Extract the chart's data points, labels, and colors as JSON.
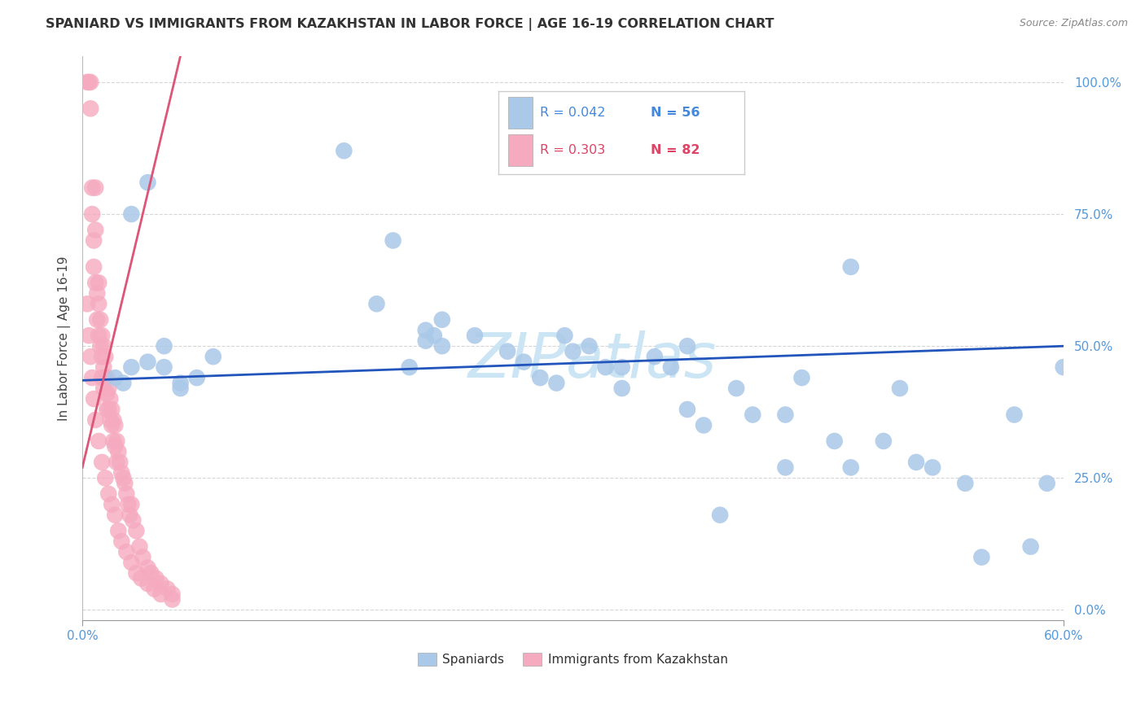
{
  "title": "SPANIARD VS IMMIGRANTS FROM KAZAKHSTAN IN LABOR FORCE | AGE 16-19 CORRELATION CHART",
  "source": "Source: ZipAtlas.com",
  "ylabel": "In Labor Force | Age 16-19",
  "blue_label": "Spaniards",
  "pink_label": "Immigrants from Kazakhstan",
  "blue_R": 0.042,
  "blue_N": 56,
  "pink_R": 0.303,
  "pink_N": 82,
  "blue_color": "#aac8e8",
  "pink_color": "#f5aabf",
  "blue_line_color": "#2255bb",
  "pink_line_color": "#dd5577",
  "axis_label_color": "#5599dd",
  "xlim": [
    0.0,
    0.6
  ],
  "ylim": [
    -0.02,
    1.05
  ],
  "xtick_pos": [
    0.0,
    0.6
  ],
  "xtick_labels": [
    "0.0%",
    "60.0%"
  ],
  "yticks": [
    0.0,
    0.25,
    0.5,
    0.75,
    1.0
  ],
  "ytick_labels": [
    "0.0%",
    "25.0%",
    "50.0%",
    "75.0%",
    "100.0%"
  ],
  "watermark": "ZIPatlas",
  "watermark_color": "#cce5f5",
  "background_color": "#ffffff",
  "grid_color": "#cccccc",
  "title_fontsize": 11.5,
  "tick_fontsize": 11,
  "legend_color_blue": "#4488dd",
  "legend_color_pink": "#dd4466",
  "blue_x": [
    0.025,
    0.16,
    0.19,
    0.21,
    0.215,
    0.22,
    0.24,
    0.26,
    0.27,
    0.28,
    0.29,
    0.295,
    0.3,
    0.32,
    0.33,
    0.35,
    0.36,
    0.37,
    0.38,
    0.4,
    0.41,
    0.43,
    0.44,
    0.46,
    0.47,
    0.49,
    0.51,
    0.52,
    0.54,
    0.57,
    0.59,
    0.02,
    0.03,
    0.04,
    0.05,
    0.06,
    0.07,
    0.08,
    0.03,
    0.04,
    0.05,
    0.06,
    0.18,
    0.2,
    0.21,
    0.22,
    0.31,
    0.33,
    0.37,
    0.39,
    0.43,
    0.47,
    0.5,
    0.55,
    0.58,
    0.6
  ],
  "blue_y": [
    0.43,
    0.87,
    0.7,
    0.53,
    0.52,
    0.55,
    0.52,
    0.49,
    0.47,
    0.44,
    0.43,
    0.52,
    0.49,
    0.46,
    0.42,
    0.48,
    0.46,
    0.38,
    0.35,
    0.42,
    0.37,
    0.37,
    0.44,
    0.32,
    0.27,
    0.32,
    0.28,
    0.27,
    0.24,
    0.37,
    0.24,
    0.44,
    0.46,
    0.47,
    0.46,
    0.43,
    0.44,
    0.48,
    0.75,
    0.81,
    0.5,
    0.42,
    0.58,
    0.46,
    0.51,
    0.5,
    0.5,
    0.46,
    0.5,
    0.18,
    0.27,
    0.65,
    0.42,
    0.1,
    0.12,
    0.46
  ],
  "pink_x": [
    0.003,
    0.004,
    0.005,
    0.005,
    0.006,
    0.006,
    0.007,
    0.007,
    0.008,
    0.008,
    0.008,
    0.009,
    0.009,
    0.01,
    0.01,
    0.01,
    0.011,
    0.011,
    0.012,
    0.012,
    0.012,
    0.013,
    0.013,
    0.013,
    0.014,
    0.014,
    0.015,
    0.015,
    0.015,
    0.016,
    0.016,
    0.017,
    0.017,
    0.018,
    0.018,
    0.019,
    0.019,
    0.02,
    0.02,
    0.021,
    0.021,
    0.022,
    0.023,
    0.024,
    0.025,
    0.026,
    0.027,
    0.028,
    0.029,
    0.03,
    0.031,
    0.033,
    0.035,
    0.037,
    0.04,
    0.042,
    0.045,
    0.048,
    0.052,
    0.055,
    0.003,
    0.004,
    0.005,
    0.006,
    0.007,
    0.008,
    0.01,
    0.012,
    0.014,
    0.016,
    0.018,
    0.02,
    0.022,
    0.024,
    0.027,
    0.03,
    0.033,
    0.036,
    0.04,
    0.044,
    0.048,
    0.055
  ],
  "pink_y": [
    1.0,
    1.0,
    1.0,
    0.95,
    0.8,
    0.75,
    0.7,
    0.65,
    0.8,
    0.72,
    0.62,
    0.6,
    0.55,
    0.62,
    0.58,
    0.52,
    0.55,
    0.5,
    0.52,
    0.48,
    0.44,
    0.5,
    0.46,
    0.42,
    0.48,
    0.44,
    0.44,
    0.41,
    0.38,
    0.42,
    0.38,
    0.4,
    0.36,
    0.38,
    0.35,
    0.36,
    0.32,
    0.35,
    0.31,
    0.32,
    0.28,
    0.3,
    0.28,
    0.26,
    0.25,
    0.24,
    0.22,
    0.2,
    0.18,
    0.2,
    0.17,
    0.15,
    0.12,
    0.1,
    0.08,
    0.07,
    0.06,
    0.05,
    0.04,
    0.03,
    0.58,
    0.52,
    0.48,
    0.44,
    0.4,
    0.36,
    0.32,
    0.28,
    0.25,
    0.22,
    0.2,
    0.18,
    0.15,
    0.13,
    0.11,
    0.09,
    0.07,
    0.06,
    0.05,
    0.04,
    0.03,
    0.02
  ],
  "blue_line_x": [
    0.0,
    0.6
  ],
  "blue_line_y": [
    0.435,
    0.5
  ],
  "pink_line_x": [
    0.0,
    0.06
  ],
  "pink_line_y": [
    0.27,
    1.05
  ]
}
